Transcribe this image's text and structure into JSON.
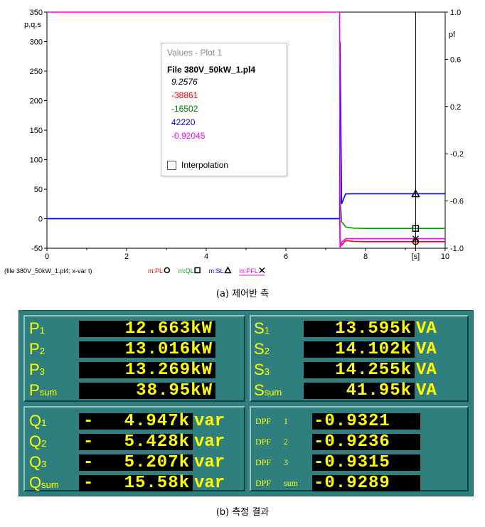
{
  "chart_data": {
    "type": "line",
    "y_left_label": "p,q,s",
    "y_right_label": "pf",
    "x_unit_label": "[s]",
    "xlim": [
      0,
      10
    ],
    "ylim_left": [
      -50,
      350
    ],
    "ylim_right": [
      -1.0,
      1.0
    ],
    "x_ticks": [
      "0",
      "2",
      "4",
      "6",
      "8",
      "[s]",
      "10"
    ],
    "y_left_ticks": [
      "350",
      "300",
      "250",
      "200",
      "150",
      "100",
      "50",
      "0",
      "-50"
    ],
    "y_right_ticks": [
      "1.0",
      "0.6",
      "0.2",
      "-0.2",
      "-0.6",
      "-1.0"
    ],
    "cursor_x": 9.2576,
    "series": [
      {
        "name": "m:PL",
        "marker": "circle",
        "color": "#ff0000",
        "x": [
          0,
          7.35,
          7.36,
          7.4,
          7.5,
          7.7,
          8,
          10
        ],
        "y": [
          0,
          0,
          -40,
          -45,
          -37,
          -38.5,
          -38.9,
          -38.9
        ]
      },
      {
        "name": "m:QL",
        "marker": "square",
        "color": "#00a000",
        "x": [
          0,
          7.35,
          7.36,
          7.4,
          7.5,
          7.7,
          8,
          10
        ],
        "y": [
          0,
          0,
          40,
          -5,
          -14,
          -16,
          -16.5,
          -16.5
        ]
      },
      {
        "name": "m:SL",
        "marker": "triangle",
        "color": "#0000ff",
        "x": [
          0,
          7.35,
          7.36,
          7.4,
          7.5,
          7.7,
          8,
          10
        ],
        "y": [
          0,
          0,
          300,
          25,
          42,
          42.2,
          42.2,
          42.2
        ]
      },
      {
        "name": "m:PFL",
        "marker": "x",
        "color": "#ff00ff",
        "x": [
          0,
          7.35,
          7.36,
          7.4,
          7.5,
          7.7,
          8,
          10
        ],
        "y": [
          1.0,
          1.0,
          -1.0,
          -0.95,
          -0.92,
          -0.92,
          -0.92,
          -0.92
        ]
      }
    ],
    "legend_prefix": "(file 380V_50kW_1.pl4; x-var t)"
  },
  "values_popup": {
    "title": "Values - Plot 1",
    "file": "File 380V_50kW_1.pl4",
    "values": [
      "9.2576",
      "-38861",
      "-16502",
      "42220",
      "-0.92045"
    ],
    "value_colors": [
      "#000000",
      "#ff0000",
      "#008000",
      "#0000ff",
      "#ff00ff"
    ],
    "interpolation_label": "Interpolation"
  },
  "caption_a": "(a) 제어반 측",
  "caption_b": "(b) 측정 결과",
  "meter": {
    "power_rows": [
      {
        "label": "P",
        "sub": "1",
        "value": "12.663",
        "unit": "kW"
      },
      {
        "label": "P",
        "sub": "2",
        "value": "13.016",
        "unit": "kW"
      },
      {
        "label": "P",
        "sub": "3",
        "value": "13.269",
        "unit": "kW"
      },
      {
        "label": "P",
        "sub": "sum",
        "value": "38.95",
        "unit": "kW"
      }
    ],
    "apparent_rows": [
      {
        "label": "S",
        "sub": "1",
        "value": "13.595",
        "unit": "k",
        "unit2": "VA"
      },
      {
        "label": "S",
        "sub": "2",
        "value": "14.102",
        "unit": "k",
        "unit2": "VA"
      },
      {
        "label": "S",
        "sub": "3",
        "value": "14.255",
        "unit": "k",
        "unit2": "VA"
      },
      {
        "label": "S",
        "sub": "sum",
        "value": "41.95",
        "unit": "k",
        "unit2": "VA"
      }
    ],
    "reactive_rows": [
      {
        "label": "Q",
        "sub": "1",
        "value": "- 4.947",
        "unit": "k",
        "unit2": "var"
      },
      {
        "label": "Q",
        "sub": "2",
        "value": "- 5.428",
        "unit": "k",
        "unit2": "var"
      },
      {
        "label": "Q",
        "sub": "3",
        "value": "- 5.207",
        "unit": "k",
        "unit2": "var"
      },
      {
        "label": "Q",
        "sub": "sum",
        "value": "- 15.58",
        "unit": "k",
        "unit2": "var"
      }
    ],
    "dpf_rows": [
      {
        "label": "DPF",
        "sub": "1",
        "value": "-0.9321"
      },
      {
        "label": "DPF",
        "sub": "2",
        "value": "-0.9236"
      },
      {
        "label": "DPF",
        "sub": "3",
        "value": "-0.9315"
      },
      {
        "label": "DPF",
        "sub": "sum",
        "value": "-0.9289"
      }
    ]
  }
}
